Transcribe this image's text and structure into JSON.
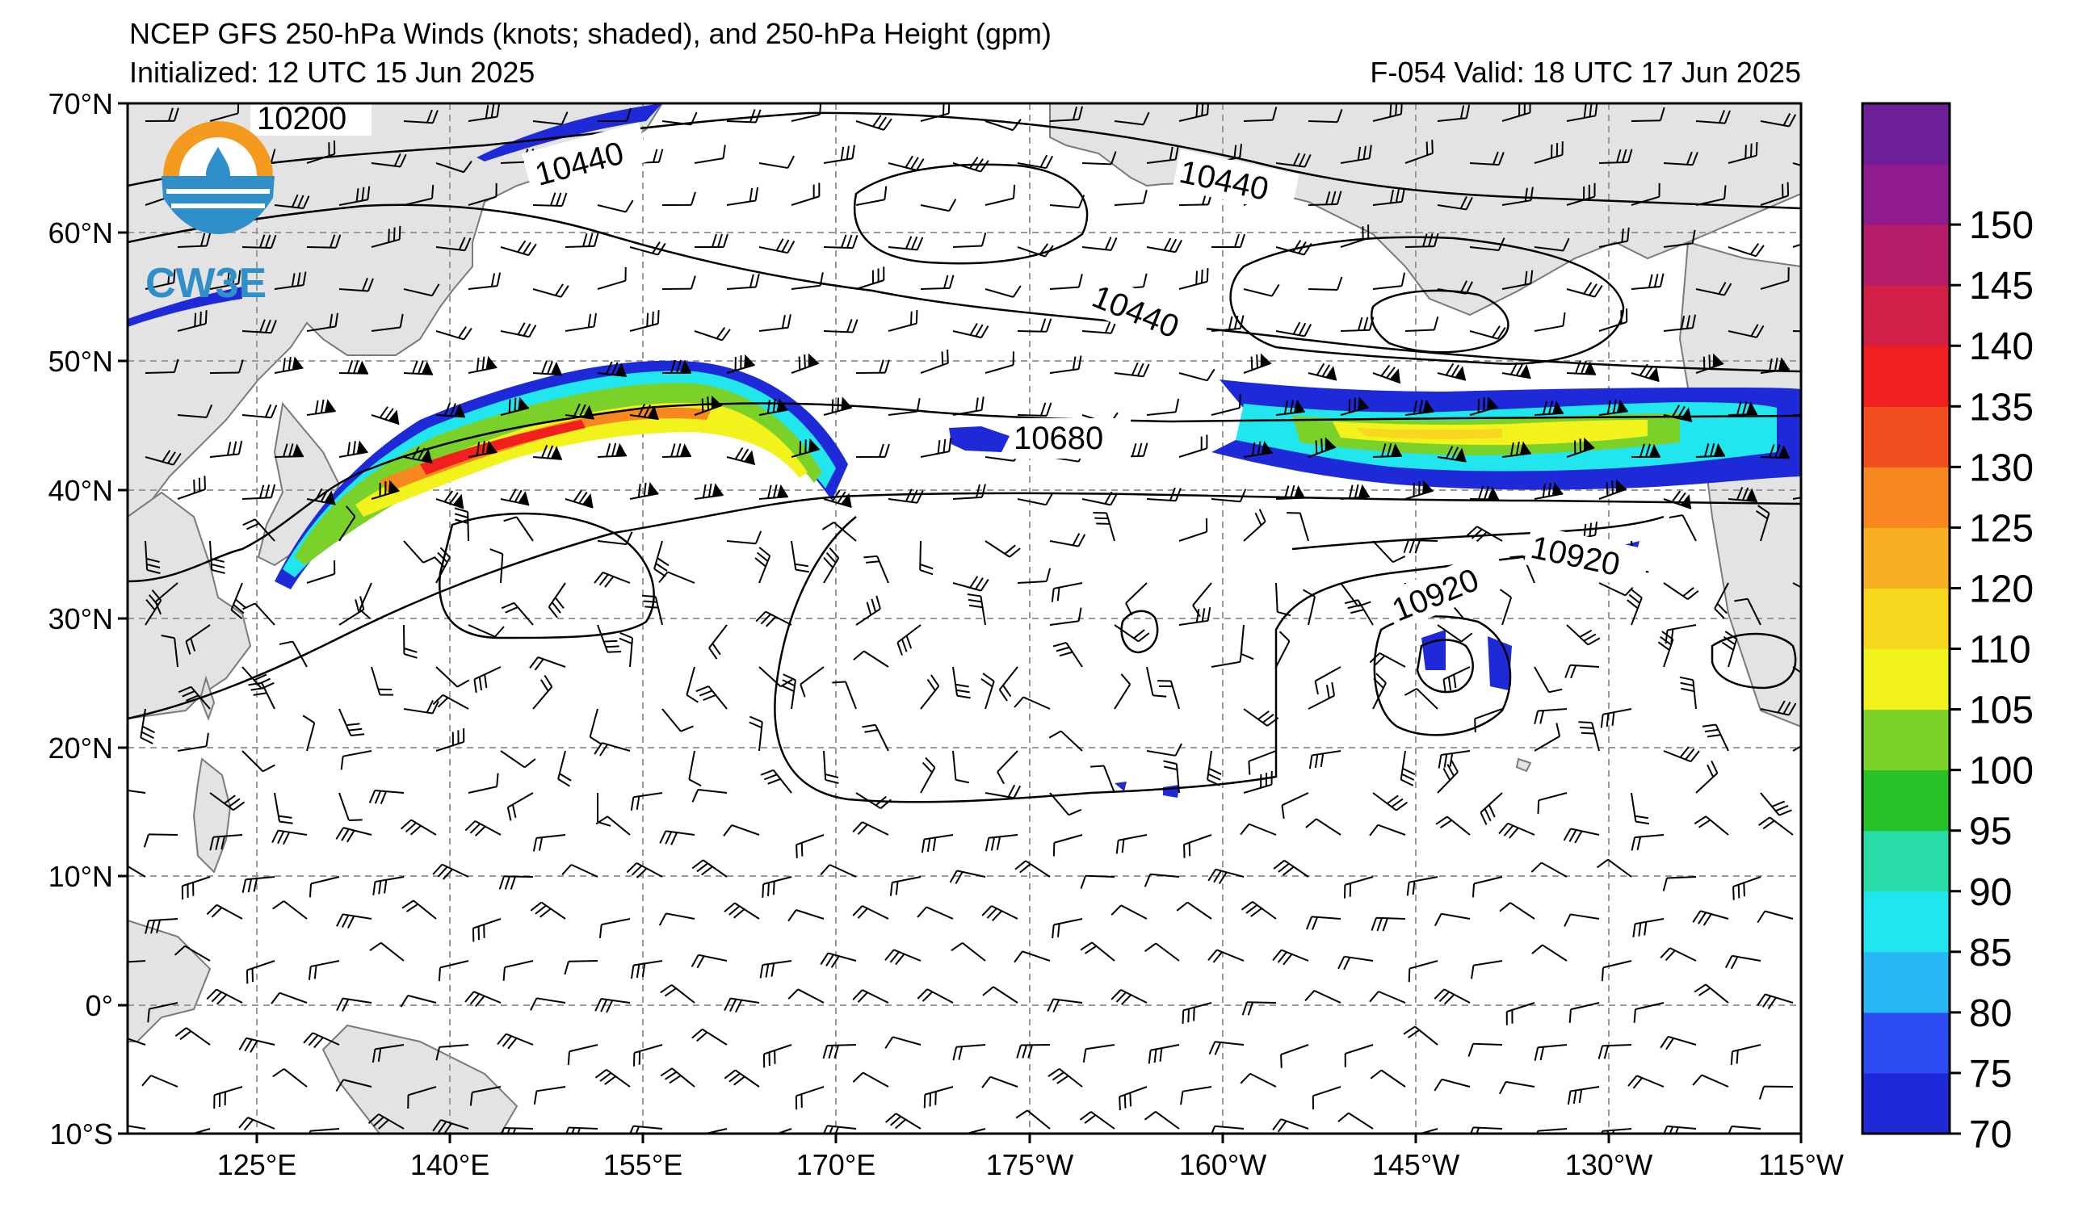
{
  "header": {
    "title": "NCEP GFS 250-hPa Winds (knots; shaded), and 250-hPa Height (gpm)",
    "initialized": "Initialized: 12 UTC 15 Jun 2025",
    "valid": "F-054  Valid: 18 UTC 17 Jun 2025"
  },
  "logo": {
    "text": "CW3E"
  },
  "map": {
    "lat_labels": [
      "70°N",
      "60°N",
      "50°N",
      "40°N",
      "30°N",
      "20°N",
      "10°N",
      "0°",
      "10°S"
    ],
    "lon_labels": [
      "125°E",
      "140°E",
      "155°E",
      "170°E",
      "175°W",
      "160°W",
      "145°W",
      "130°W",
      "115°W"
    ],
    "height_contour_labels": [
      "10200",
      "10440",
      "10440",
      "10440",
      "10680",
      "10920",
      "10920"
    ],
    "colors": {
      "land": "#e3e3e3",
      "coast": "#7a7a7a",
      "grid": "#9a9a9a",
      "contour": "#000000"
    }
  },
  "colorbar": {
    "ticks": [
      "70",
      "75",
      "80",
      "85",
      "90",
      "95",
      "100",
      "105",
      "110",
      "120",
      "125",
      "130",
      "135",
      "140",
      "145",
      "150"
    ],
    "colors": [
      "#1e2ad8",
      "#2b4cf0",
      "#25b8f2",
      "#21e6ee",
      "#27dca6",
      "#27c227",
      "#79d12a",
      "#f2f21c",
      "#f7d81f",
      "#f7b021",
      "#f7871f",
      "#f24d1f",
      "#f21f1f",
      "#d11f45",
      "#b51c6a",
      "#8f1b8f",
      "#6c1f96"
    ]
  }
}
